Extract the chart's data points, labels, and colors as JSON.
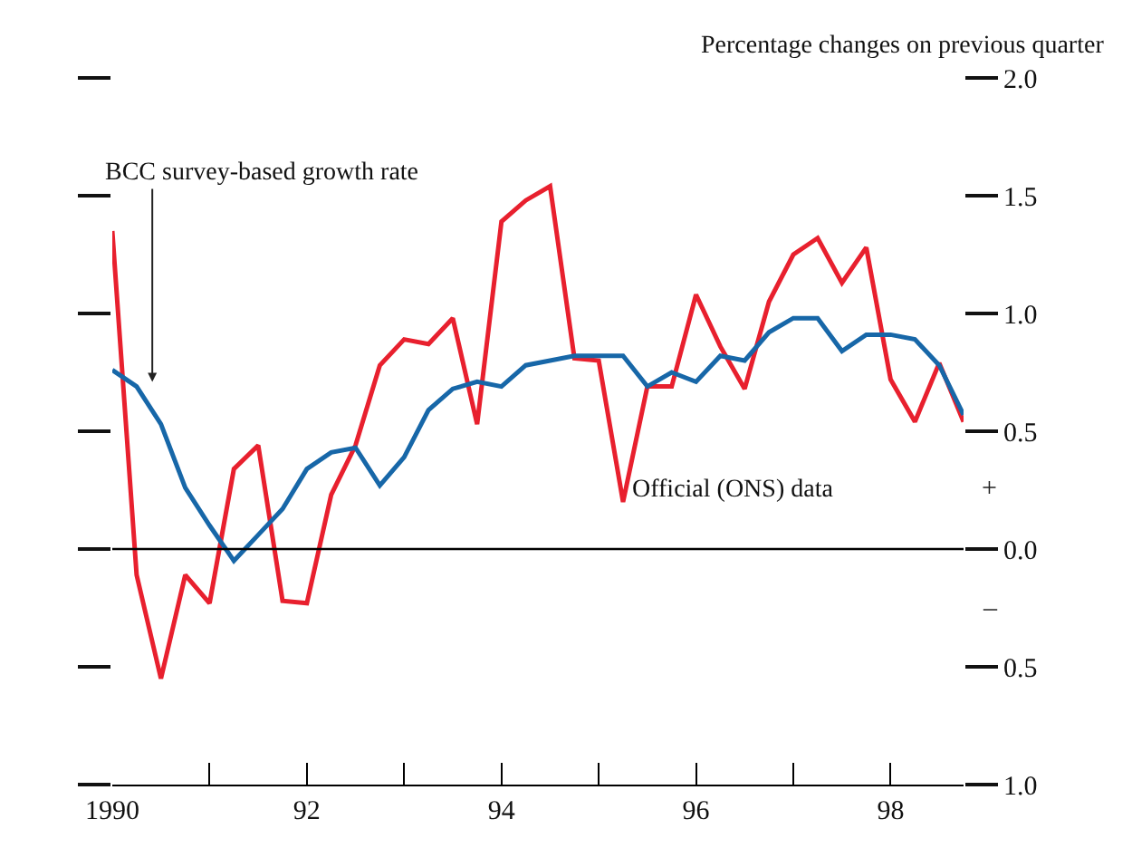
{
  "chart_data": {
    "type": "line",
    "ylabel": "Percentage changes on previous quarter",
    "x": [
      1990.0,
      1990.25,
      1990.5,
      1990.75,
      1991.0,
      1991.25,
      1991.5,
      1991.75,
      1992.0,
      1992.25,
      1992.5,
      1992.75,
      1993.0,
      1993.25,
      1993.5,
      1993.75,
      1994.0,
      1994.25,
      1994.5,
      1994.75,
      1995.0,
      1995.25,
      1995.5,
      1995.75,
      1996.0,
      1996.25,
      1996.5,
      1996.75,
      1997.0,
      1997.25,
      1997.5,
      1997.75,
      1998.0,
      1998.25,
      1998.5,
      1998.75
    ],
    "series": [
      {
        "color": "#e8202e",
        "values": [
          1.35,
          -0.11,
          -0.55,
          -0.11,
          -0.23,
          0.34,
          0.44,
          -0.22,
          -0.23,
          0.23,
          0.44,
          0.78,
          0.89,
          0.87,
          0.98,
          0.53,
          1.39,
          1.48,
          1.54,
          0.81,
          0.8,
          0.2,
          0.69,
          0.69,
          1.08,
          0.86,
          0.68,
          1.05,
          1.25,
          1.32,
          1.13,
          1.28,
          0.72,
          0.54,
          0.79,
          0.54
        ]
      },
      {
        "color": "#1767a8",
        "values": [
          0.76,
          0.69,
          0.53,
          0.26,
          0.1,
          -0.05,
          0.06,
          0.17,
          0.34,
          0.41,
          0.43,
          0.27,
          0.39,
          0.59,
          0.68,
          0.71,
          0.69,
          0.78,
          0.8,
          0.82,
          0.82,
          0.82,
          0.69,
          0.75,
          0.71,
          0.82,
          0.8,
          0.92,
          0.98,
          0.98,
          0.84,
          0.91,
          0.91,
          0.89,
          0.78,
          0.57
        ]
      }
    ],
    "xlim": [
      1990,
      1998.75
    ],
    "xticks": [
      {
        "value": 1990,
        "label": "1990"
      },
      {
        "value": 1991,
        "label": null
      },
      {
        "value": 1992,
        "label": "92"
      },
      {
        "value": 1993,
        "label": null
      },
      {
        "value": 1994,
        "label": "94"
      },
      {
        "value": 1995,
        "label": null
      },
      {
        "value": 1996,
        "label": "96"
      },
      {
        "value": 1997,
        "label": null
      },
      {
        "value": 1998,
        "label": "98"
      }
    ],
    "ylim": [
      -1,
      2
    ],
    "yticks": [
      {
        "value": 2,
        "label": "2.0"
      },
      {
        "value": 1.5,
        "label": "1.5"
      },
      {
        "value": 1,
        "label": "1.0"
      },
      {
        "value": 0.5,
        "label": "0.5"
      },
      {
        "value": 0,
        "label": "0.0"
      },
      {
        "value": -0.5,
        "label": "0.5"
      },
      {
        "value": -1,
        "label": "1.0"
      }
    ],
    "ref_lines": [
      {
        "axis": "y",
        "value": 0,
        "color": "#000000"
      }
    ],
    "annotations": [
      "BCC survey-based growth rate",
      {
        "text": "Official (ONS) data",
        "x": 1995.3,
        "y": 0.25
      },
      "+",
      "–"
    ],
    "marker": "none",
    "line_style": "solid"
  }
}
